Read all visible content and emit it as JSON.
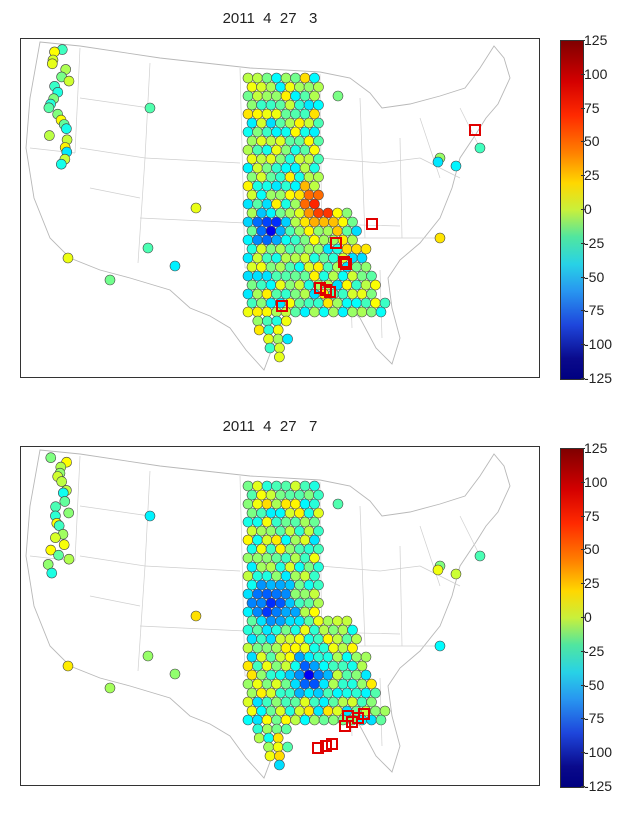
{
  "panels": [
    {
      "title": "2011  4  27   3",
      "colorbar": {
        "ticks": [
          "125",
          "100",
          "75",
          "50",
          "25",
          "0",
          "-25",
          "-50",
          "-75",
          "-100",
          "-125"
        ]
      }
    },
    {
      "title": "2011  4  27   7",
      "colorbar": {
        "ticks": [
          "125",
          "100",
          "75",
          "50",
          "25",
          "0",
          "-25",
          "-50",
          "-75",
          "-100",
          "-125"
        ]
      }
    }
  ],
  "colors": {
    "outline": "#c0c0c0",
    "marker": "#e00000",
    "frame": "#333333"
  },
  "colormap": "jet",
  "value_range": [
    -125,
    125
  ],
  "marker_shape": "open-square",
  "station_shape": "circle"
}
